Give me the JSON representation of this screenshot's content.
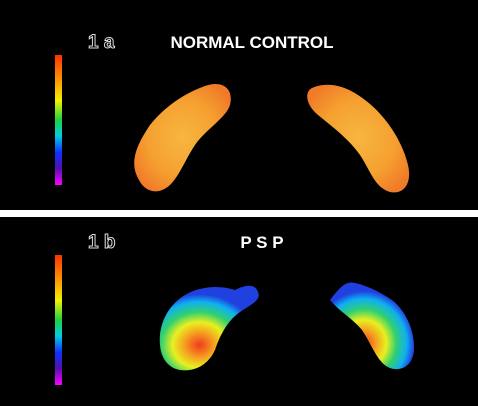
{
  "panels": [
    {
      "label": "1 a",
      "title": "NORMAL CONTROL"
    },
    {
      "label": "1 b",
      "title": "P S P"
    }
  ]
}
